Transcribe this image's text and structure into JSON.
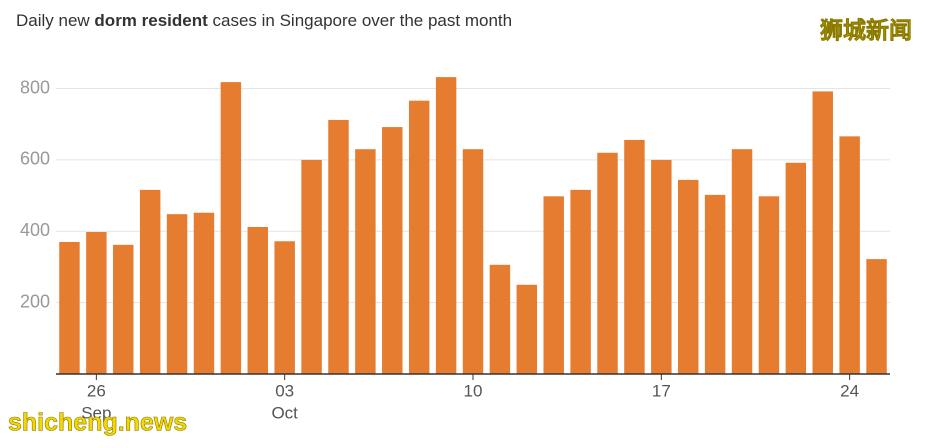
{
  "chart_data": {
    "type": "bar",
    "title_parts": [
      "Daily new ",
      "dorm resident",
      " cases in Singapore over the past month"
    ],
    "watermarks": [
      "狮城新闻",
      "shicheng.news"
    ],
    "categories": [
      null,
      "26",
      null,
      null,
      null,
      null,
      null,
      null,
      "03",
      null,
      null,
      null,
      null,
      null,
      null,
      "10",
      null,
      null,
      null,
      null,
      null,
      null,
      "17",
      null,
      null,
      null,
      null,
      null,
      null,
      "24",
      null
    ],
    "category_months": [
      null,
      "Sep",
      null,
      null,
      null,
      null,
      null,
      null,
      "Oct",
      null,
      null,
      null,
      null,
      null,
      null,
      null,
      null,
      null,
      null,
      null,
      null,
      null,
      null,
      null,
      null,
      null,
      null,
      null,
      null,
      null,
      null
    ],
    "values": [
      370,
      398,
      362,
      516,
      448,
      452,
      818,
      412,
      372,
      600,
      712,
      630,
      692,
      766,
      832,
      630,
      306,
      250,
      498,
      516,
      620,
      656,
      600,
      544,
      502,
      630,
      498,
      592,
      792,
      666,
      322
    ],
    "color": "#e57c30",
    "ylim": [
      0,
      880
    ],
    "yticks": [
      200,
      400,
      600,
      800
    ],
    "grid": true
  }
}
